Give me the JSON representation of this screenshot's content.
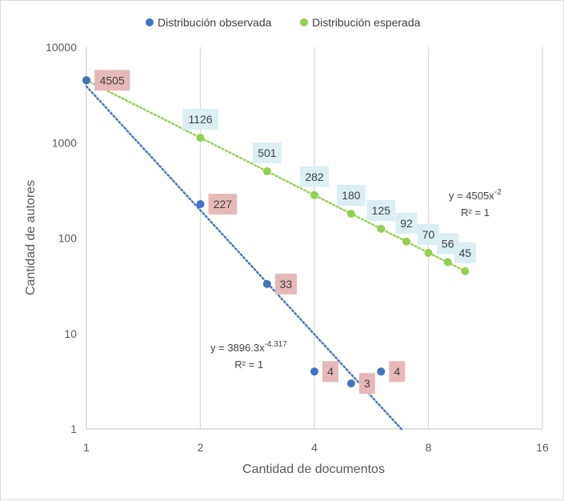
{
  "chart_data": {
    "type": "scatter",
    "xlabel": "Cantidad de documentos",
    "ylabel": "Cantidad de autores",
    "x_scale": "log2",
    "y_scale": "log10",
    "xlim": [
      1,
      16
    ],
    "ylim": [
      1,
      10000
    ],
    "x_ticks": [
      "1",
      "2",
      "4",
      "8",
      "16"
    ],
    "y_ticks": [
      "1",
      "10",
      "100",
      "1000",
      "10000"
    ],
    "grid": "vertical",
    "legend_position": "top",
    "series": [
      {
        "name": "Distribución observada",
        "color": "#4472c4",
        "label_bg": "#e6b9b8",
        "points": [
          {
            "x": 1,
            "y": 4505,
            "label": "4505"
          },
          {
            "x": 2,
            "y": 227,
            "label": "227"
          },
          {
            "x": 3,
            "y": 33,
            "label": "33"
          },
          {
            "x": 4,
            "y": 4,
            "label": "4"
          },
          {
            "x": 5,
            "y": 3,
            "label": "3"
          },
          {
            "x": 6,
            "y": 4,
            "label": "4"
          }
        ],
        "trendline": {
          "type": "power",
          "a": 3896.3,
          "b": -4.317,
          "x_range": [
            1,
            6.8
          ],
          "equation_prefix": "y = 3896.3x",
          "equation_exp": "-4.317",
          "r2": "R² = 1"
        }
      },
      {
        "name": "Distribución esperada",
        "color": "#92d050",
        "label_bg": "#daeef3",
        "points": [
          {
            "x": 1,
            "y": 4505,
            "label": ""
          },
          {
            "x": 2,
            "y": 1126,
            "label": "1126"
          },
          {
            "x": 3,
            "y": 501,
            "label": "501"
          },
          {
            "x": 4,
            "y": 282,
            "label": "282"
          },
          {
            "x": 5,
            "y": 180,
            "label": "180"
          },
          {
            "x": 6,
            "y": 125,
            "label": "125"
          },
          {
            "x": 7,
            "y": 92,
            "label": "92"
          },
          {
            "x": 8,
            "y": 70,
            "label": "70"
          },
          {
            "x": 9,
            "y": 56,
            "label": "56"
          },
          {
            "x": 10,
            "y": 45,
            "label": "45"
          }
        ],
        "trendline": {
          "type": "power",
          "a": 4505,
          "b": -2,
          "x_range": [
            1,
            10
          ],
          "equation_prefix": "y = 4505x",
          "equation_exp": "-2",
          "r2": "R² = 1"
        }
      }
    ]
  }
}
